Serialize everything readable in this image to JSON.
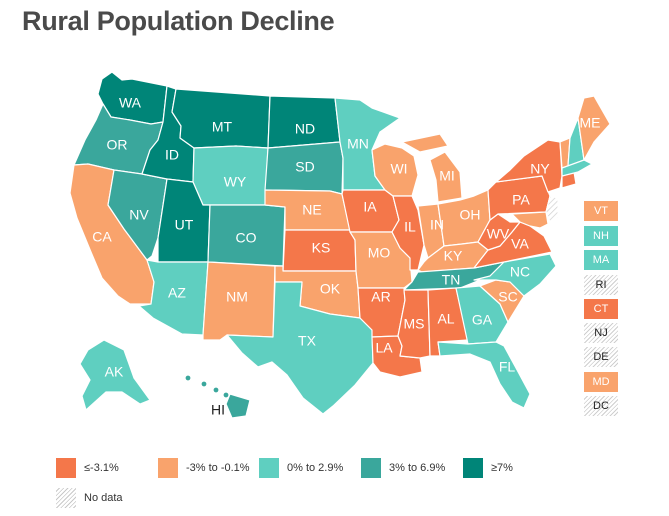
{
  "title": "Rural Population Decline",
  "colors": {
    "c1": "#f4774a",
    "c2": "#f9a36c",
    "c3": "#5fcfc0",
    "c4": "#3aa79c",
    "c5": "#008578",
    "nodata": "#d8d8d8"
  },
  "legend": [
    {
      "cls": "c1",
      "label": "≤-3.1%"
    },
    {
      "cls": "c2",
      "label": "-3% to -0.1%"
    },
    {
      "cls": "c3",
      "label": "0% to 2.9%"
    },
    {
      "cls": "c4",
      "label": "3% to 6.9%"
    },
    {
      "cls": "c5",
      "label": "≥7%"
    },
    {
      "cls": "nodata",
      "label": "No data"
    }
  ],
  "states": {
    "WA": {
      "label": "WA",
      "cls": "c5"
    },
    "OR": {
      "label": "OR",
      "cls": "c4"
    },
    "CA": {
      "label": "CA",
      "cls": "c2"
    },
    "NV": {
      "label": "NV",
      "cls": "c4"
    },
    "ID": {
      "label": "ID",
      "cls": "c5"
    },
    "MT": {
      "label": "MT",
      "cls": "c5"
    },
    "WY": {
      "label": "WY",
      "cls": "c3"
    },
    "UT": {
      "label": "UT",
      "cls": "c5"
    },
    "AZ": {
      "label": "AZ",
      "cls": "c3"
    },
    "CO": {
      "label": "CO",
      "cls": "c4"
    },
    "NM": {
      "label": "NM",
      "cls": "c2"
    },
    "ND": {
      "label": "ND",
      "cls": "c5"
    },
    "SD": {
      "label": "SD",
      "cls": "c4"
    },
    "NE": {
      "label": "NE",
      "cls": "c2"
    },
    "KS": {
      "label": "KS",
      "cls": "c1"
    },
    "OK": {
      "label": "OK",
      "cls": "c2"
    },
    "TX": {
      "label": "TX",
      "cls": "c3"
    },
    "MN": {
      "label": "MN",
      "cls": "c3"
    },
    "IA": {
      "label": "IA",
      "cls": "c1"
    },
    "MO": {
      "label": "MO",
      "cls": "c2"
    },
    "AR": {
      "label": "AR",
      "cls": "c1"
    },
    "LA": {
      "label": "LA",
      "cls": "c1"
    },
    "WI": {
      "label": "WI",
      "cls": "c2"
    },
    "IL": {
      "label": "IL",
      "cls": "c1"
    },
    "MI": {
      "label": "MI",
      "cls": "c2"
    },
    "IN": {
      "label": "IN",
      "cls": "c2"
    },
    "OH": {
      "label": "OH",
      "cls": "c2"
    },
    "KY": {
      "label": "KY",
      "cls": "c2"
    },
    "TN": {
      "label": "TN",
      "cls": "c4"
    },
    "MS": {
      "label": "MS",
      "cls": "c1"
    },
    "AL": {
      "label": "AL",
      "cls": "c1"
    },
    "GA": {
      "label": "GA",
      "cls": "c3"
    },
    "FL": {
      "label": "FL",
      "cls": "c3"
    },
    "SC": {
      "label": "SC",
      "cls": "c2"
    },
    "NC": {
      "label": "NC",
      "cls": "c3"
    },
    "VA": {
      "label": "VA",
      "cls": "c1"
    },
    "WV": {
      "label": "WV",
      "cls": "c1"
    },
    "PA": {
      "label": "PA",
      "cls": "c1"
    },
    "NY": {
      "label": "NY",
      "cls": "c1"
    },
    "ME": {
      "label": "ME",
      "cls": "c2"
    },
    "AK": {
      "label": "AK",
      "cls": "c3"
    },
    "HI": {
      "label": "HI",
      "cls": "c4"
    }
  },
  "small_states": [
    {
      "label": "VT",
      "cls": "c2"
    },
    {
      "label": "NH",
      "cls": "c3"
    },
    {
      "label": "MA",
      "cls": "c3"
    },
    {
      "label": "RI",
      "cls": "nodata"
    },
    {
      "label": "CT",
      "cls": "c1"
    },
    {
      "label": "NJ",
      "cls": "nodata"
    },
    {
      "label": "DE",
      "cls": "nodata"
    },
    {
      "label": "MD",
      "cls": "c2"
    },
    {
      "label": "DC",
      "cls": "nodata"
    }
  ]
}
